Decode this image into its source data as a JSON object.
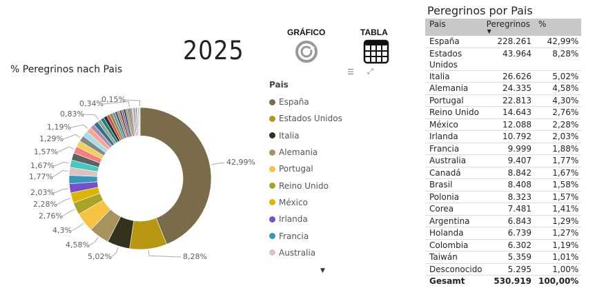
{
  "year": "2025",
  "buttons": {
    "chart_label": "GRÁFICO",
    "table_label": "TABLA"
  },
  "chart_title": "% Peregrinos nach Pais",
  "legend": {
    "title": "Pais",
    "items": [
      {
        "name": "España",
        "color": "#7A6C4A"
      },
      {
        "name": "Estados Unidos",
        "color": "#B8960F"
      },
      {
        "name": "Italia",
        "color": "#33321E"
      },
      {
        "name": "Alemania",
        "color": "#A8935F"
      },
      {
        "name": "Portugal",
        "color": "#F5C242"
      },
      {
        "name": "Reino Unido",
        "color": "#A9A428"
      },
      {
        "name": "México",
        "color": "#DDB500"
      },
      {
        "name": "Irlanda",
        "color": "#7451C9"
      },
      {
        "name": "Francia",
        "color": "#3399BB"
      },
      {
        "name": "Australia",
        "color": "#E0C1C1"
      }
    ]
  },
  "table": {
    "title": "Peregrinos por Pais",
    "headers": [
      "Pais",
      "Peregrinos",
      "%"
    ],
    "rows": [
      [
        "España",
        "228.261",
        "42,99%"
      ],
      [
        "Estados Unidos",
        "43.964",
        "8,28%"
      ],
      [
        "Italia",
        "26.626",
        "5,02%"
      ],
      [
        "Alemania",
        "24.335",
        "4,58%"
      ],
      [
        "Portugal",
        "22.813",
        "4,30%"
      ],
      [
        "Reino Unido",
        "14.643",
        "2,76%"
      ],
      [
        "México",
        "12.088",
        "2,28%"
      ],
      [
        "Irlanda",
        "10.792",
        "2,03%"
      ],
      [
        "Francia",
        "9.999",
        "1,88%"
      ],
      [
        "Australia",
        "9.407",
        "1,77%"
      ],
      [
        "Canadá",
        "8.842",
        "1,67%"
      ],
      [
        "Brasil",
        "8.408",
        "1,58%"
      ],
      [
        "Polonia",
        "8.323",
        "1,57%"
      ],
      [
        "Corea",
        "7.481",
        "1,41%"
      ],
      [
        "Argentina",
        "6.843",
        "1,29%"
      ],
      [
        "Holanda",
        "6.739",
        "1,27%"
      ],
      [
        "Colombia",
        "6.302",
        "1,19%"
      ],
      [
        "Taiwán",
        "5.359",
        "1,01%"
      ],
      [
        "Desconocido",
        "5.295",
        "1,00%"
      ]
    ],
    "total": [
      "Gesamt",
      "530.919",
      "100,00%"
    ]
  },
  "chart_data": {
    "type": "pie",
    "donut": true,
    "slices": [
      {
        "label": "España",
        "value": 42.99,
        "color": "#7A6C4A",
        "data_label": "42,99%"
      },
      {
        "label": "Estados Unidos",
        "value": 8.28,
        "color": "#B8960F",
        "data_label": "8,28%"
      },
      {
        "label": "Italia",
        "value": 5.02,
        "color": "#33321E",
        "data_label": "5,02%"
      },
      {
        "label": "Alemania",
        "value": 4.58,
        "color": "#A8935F",
        "data_label": "4,58%"
      },
      {
        "label": "Portugal",
        "value": 4.3,
        "color": "#F5C242",
        "data_label": "4,3%"
      },
      {
        "label": "Reino Unido",
        "value": 2.76,
        "color": "#A9A428",
        "data_label": "2,76%"
      },
      {
        "label": "México",
        "value": 2.28,
        "color": "#DDB500",
        "data_label": "2,28%"
      },
      {
        "label": "Irlanda",
        "value": 2.03,
        "color": "#7451C9",
        "data_label": "2,03%"
      },
      {
        "label": "Francia",
        "value": 1.88,
        "color": "#3399BB",
        "data_label": ""
      },
      {
        "label": "Australia",
        "value": 1.77,
        "color": "#E0C1C1",
        "data_label": "1,77%"
      },
      {
        "label": "Canadá",
        "value": 1.67,
        "color": "#48C9BC",
        "data_label": "1,67%"
      },
      {
        "label": "Brasil",
        "value": 1.58,
        "color": "#5A6265",
        "data_label": ""
      },
      {
        "label": "Polonia",
        "value": 1.57,
        "color": "#F87F7F",
        "data_label": "1,57%"
      },
      {
        "label": "Corea",
        "value": 1.41,
        "color": "#F2D15A",
        "data_label": ""
      },
      {
        "label": "Argentina",
        "value": 1.29,
        "color": "#808888",
        "data_label": "1,29%"
      },
      {
        "label": "Holanda",
        "value": 1.27,
        "color": "#A3DDEE",
        "data_label": ""
      },
      {
        "label": "Colombia",
        "value": 1.19,
        "color": "#F9A88B",
        "data_label": "1,19%"
      },
      {
        "label": "Taiwán",
        "value": 1.01,
        "color": "#B28AB8",
        "data_label": ""
      },
      {
        "label": "Desconocido",
        "value": 1.0,
        "color": "#2A7689",
        "data_label": ""
      },
      {
        "label": "",
        "value": 0.83,
        "color": "#A09A98",
        "data_label": "0,83%"
      },
      {
        "label": "",
        "value": 0.8,
        "color": "#148577",
        "data_label": ""
      },
      {
        "label": "",
        "value": 0.75,
        "color": "#2B2B2B",
        "data_label": ""
      },
      {
        "label": "",
        "value": 0.7,
        "color": "#D24E4E",
        "data_label": ""
      },
      {
        "label": "",
        "value": 0.65,
        "color": "#8C8C3A",
        "data_label": ""
      },
      {
        "label": "",
        "value": 0.6,
        "color": "#6B8DB0",
        "data_label": ""
      },
      {
        "label": "",
        "value": 0.55,
        "color": "#3A6E5E",
        "data_label": ""
      },
      {
        "label": "",
        "value": 0.5,
        "color": "#C27C5A",
        "data_label": ""
      },
      {
        "label": "",
        "value": 0.5,
        "color": "#4E5A70",
        "data_label": ""
      },
      {
        "label": "",
        "value": 0.45,
        "color": "#9C5A8A",
        "data_label": ""
      },
      {
        "label": "",
        "value": 0.42,
        "color": "#1F3F4F",
        "data_label": ""
      },
      {
        "label": "",
        "value": 0.4,
        "color": "#7AA06A",
        "data_label": ""
      },
      {
        "label": "",
        "value": 0.38,
        "color": "#B07040",
        "data_label": ""
      },
      {
        "label": "",
        "value": 0.34,
        "color": "#566070",
        "data_label": "0,34%"
      },
      {
        "label": "",
        "value": 0.32,
        "color": "#9070B0",
        "data_label": ""
      },
      {
        "label": "",
        "value": 0.3,
        "color": "#E0D040",
        "data_label": ""
      },
      {
        "label": "",
        "value": 0.28,
        "color": "#5070C0",
        "data_label": ""
      },
      {
        "label": "",
        "value": 0.26,
        "color": "#C0A0D0",
        "data_label": ""
      },
      {
        "label": "",
        "value": 0.24,
        "color": "#707070",
        "data_label": ""
      },
      {
        "label": "",
        "value": 0.22,
        "color": "#D0C070",
        "data_label": ""
      },
      {
        "label": "",
        "value": 0.2,
        "color": "#80A0C0",
        "data_label": ""
      },
      {
        "label": "",
        "value": 0.18,
        "color": "#B0B0B0",
        "data_label": ""
      },
      {
        "label": "",
        "value": 0.15,
        "color": "#C8B880",
        "data_label": "0,15%"
      }
    ]
  }
}
